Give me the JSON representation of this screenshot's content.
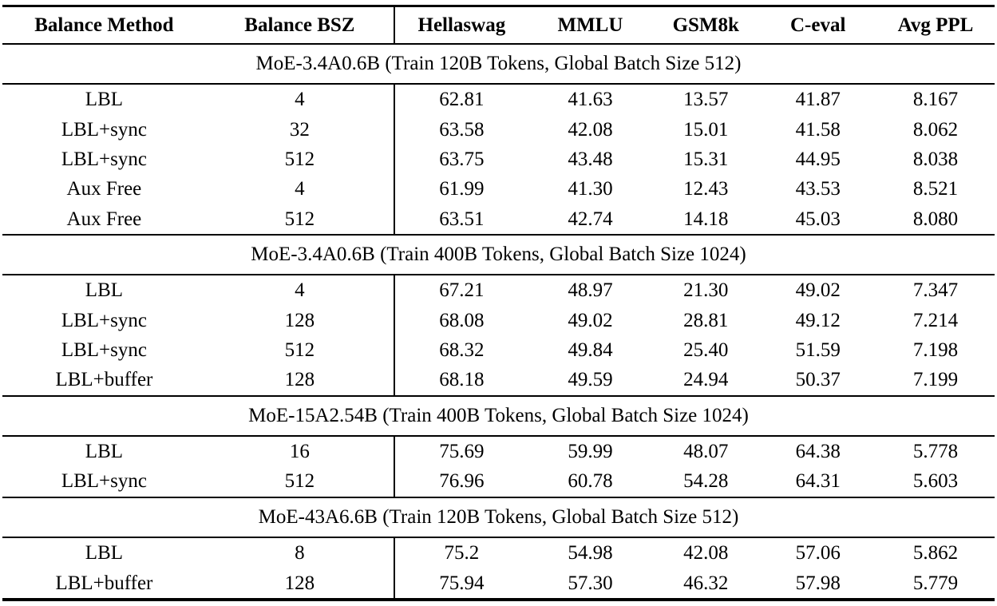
{
  "colors": {
    "text": "#000000",
    "rule": "#000000",
    "background": "#ffffff"
  },
  "columns": [
    "Balance Method",
    "Balance BSZ",
    "Hellaswag",
    "MMLU",
    "GSM8k",
    "C-eval",
    "Avg PPL"
  ],
  "sections": [
    {
      "title": "MoE-3.4A0.6B (Train 120B Tokens, Global Batch Size 512)",
      "rows": [
        {
          "cells": [
            {
              "v": "LBL"
            },
            {
              "v": "4"
            },
            {
              "v": "62.81"
            },
            {
              "v": "41.63"
            },
            {
              "v": "13.57"
            },
            {
              "v": "41.87"
            },
            {
              "v": "8.167"
            }
          ]
        },
        {
          "cells": [
            {
              "v": "LBL+sync"
            },
            {
              "v": "32"
            },
            {
              "v": "63.58"
            },
            {
              "v": "42.08"
            },
            {
              "v": "15.01"
            },
            {
              "v": "41.58"
            },
            {
              "v": "8.062",
              "b": true
            }
          ]
        },
        {
          "cells": [
            {
              "v": "LBL+sync"
            },
            {
              "v": "512"
            },
            {
              "v": "63.75",
              "b": true
            },
            {
              "v": "43.48",
              "b": true
            },
            {
              "v": "15.31",
              "b": true
            },
            {
              "v": "44.95"
            },
            {
              "v": "8.038"
            }
          ]
        },
        {
          "cells": [
            {
              "v": "Aux Free"
            },
            {
              "v": "4"
            },
            {
              "v": "61.99"
            },
            {
              "v": "41.30"
            },
            {
              "v": "12.43"
            },
            {
              "v": "43.53"
            },
            {
              "v": "8.521"
            }
          ]
        },
        {
          "cells": [
            {
              "v": "Aux Free"
            },
            {
              "v": "512"
            },
            {
              "v": "63.51"
            },
            {
              "v": "42.74"
            },
            {
              "v": "14.18"
            },
            {
              "v": "45.03",
              "b": true
            },
            {
              "v": "8.080"
            }
          ]
        }
      ]
    },
    {
      "title": "MoE-3.4A0.6B (Train 400B Tokens, Global Batch Size 1024)",
      "rows": [
        {
          "cells": [
            {
              "v": "LBL"
            },
            {
              "v": "4"
            },
            {
              "v": "67.21"
            },
            {
              "v": "48.97"
            },
            {
              "v": "21.30"
            },
            {
              "v": "49.02"
            },
            {
              "v": "7.347"
            }
          ]
        },
        {
          "cells": [
            {
              "v": "LBL+sync"
            },
            {
              "v": "128"
            },
            {
              "v": "68.08"
            },
            {
              "v": "49.02"
            },
            {
              "v": "28.81",
              "b": true
            },
            {
              "v": "49.12"
            },
            {
              "v": "7.214"
            }
          ]
        },
        {
          "cells": [
            {
              "v": "LBL+sync"
            },
            {
              "v": "512"
            },
            {
              "v": "68.32",
              "b": true
            },
            {
              "v": "49.84"
            },
            {
              "v": "25.40"
            },
            {
              "v": "51.59",
              "b": true
            },
            {
              "v": "7.198",
              "b": true
            }
          ]
        },
        {
          "cells": [
            {
              "v": "LBL+buffer"
            },
            {
              "v": "128"
            },
            {
              "v": "68.18"
            },
            {
              "v": "49.59",
              "b": true
            },
            {
              "v": "24.94"
            },
            {
              "v": "50.37"
            },
            {
              "v": "7.199",
              "b": true
            }
          ]
        }
      ]
    },
    {
      "title": "MoE-15A2.54B (Train 400B Tokens, Global Batch Size 1024)",
      "rows": [
        {
          "cells": [
            {
              "v": "LBL"
            },
            {
              "v": "16"
            },
            {
              "v": "75.69"
            },
            {
              "v": "59.99"
            },
            {
              "v": "48.07"
            },
            {
              "v": "64.38"
            },
            {
              "v": "5.778"
            }
          ]
        },
        {
          "cells": [
            {
              "v": "LBL+sync"
            },
            {
              "v": "512"
            },
            {
              "v": "76.96",
              "b": true
            },
            {
              "v": "60.78",
              "b": true
            },
            {
              "v": "54.28",
              "b": true
            },
            {
              "v": "64.31",
              "b": true
            },
            {
              "v": "5.603",
              "b": true
            }
          ]
        }
      ]
    },
    {
      "title": "MoE-43A6.6B (Train 120B Tokens, Global Batch Size 512)",
      "rows": [
        {
          "cells": [
            {
              "v": "LBL"
            },
            {
              "v": "8"
            },
            {
              "v": "75.2"
            },
            {
              "v": "54.98"
            },
            {
              "v": "42.08"
            },
            {
              "v": "57.06"
            },
            {
              "v": "5.862"
            }
          ]
        },
        {
          "cells": [
            {
              "v": "LBL+buffer"
            },
            {
              "v": "128"
            },
            {
              "v": "75.94",
              "b": true
            },
            {
              "v": "57.30",
              "b": true
            },
            {
              "v": "46.32",
              "b": true
            },
            {
              "v": "57.98",
              "b": true
            },
            {
              "v": "5.779",
              "b": true
            }
          ]
        }
      ]
    }
  ]
}
